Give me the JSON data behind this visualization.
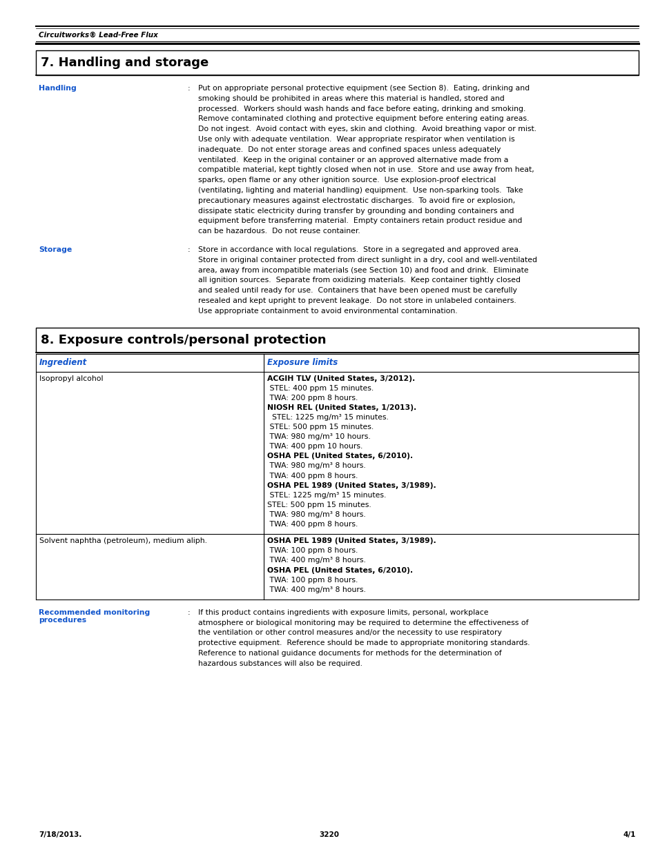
{
  "page_width": 9.54,
  "page_height": 12.35,
  "background_color": "#ffffff",
  "header_text": "Circuitworks® Lead-Free Flux",
  "footer_left": "7/18/2013.",
  "footer_center": "3220",
  "footer_right": "4/1",
  "section7_title": "7. Handling and storage",
  "section8_title": "8. Exposure controls/personal protection",
  "blue_color": "#1155CC",
  "label_handling": "Handling",
  "label_storage": "Storage",
  "label_rec_monitoring": "Recommended monitoring\nprocedures",
  "handling_text": "Put on appropriate personal protective equipment (see Section 8).  Eating, drinking and\nsmoking should be prohibited in areas where this material is handled, stored and\nprocessed.  Workers should wash hands and face before eating, drinking and smoking.\nRemove contaminated clothing and protective equipment before entering eating areas.\nDo not ingest.  Avoid contact with eyes, skin and clothing.  Avoid breathing vapor or mist.\nUse only with adequate ventilation.  Wear appropriate respirator when ventilation is\ninadequate.  Do not enter storage areas and confined spaces unless adequately\nventilated.  Keep in the original container or an approved alternative made from a\ncompatible material, kept tightly closed when not in use.  Store and use away from heat,\nsparks, open flame or any other ignition source.  Use explosion-proof electrical\n(ventilating, lighting and material handling) equipment.  Use non-sparking tools.  Take\nprecautionary measures against electrostatic discharges.  To avoid fire or explosion,\ndissipate static electricity during transfer by grounding and bonding containers and\nequipment before transferring material.  Empty containers retain product residue and\ncan be hazardous.  Do not reuse container.",
  "storage_text": "Store in accordance with local regulations.  Store in a segregated and approved area.\nStore in original container protected from direct sunlight in a dry, cool and well-ventilated\narea, away from incompatible materials (see Section 10) and food and drink.  Eliminate\nall ignition sources.  Separate from oxidizing materials.  Keep container tightly closed\nand sealed until ready for use.  Containers that have been opened must be carefully\nresealed and kept upright to prevent leakage.  Do not store in unlabeled containers.\nUse appropriate containment to avoid environmental contamination.",
  "table_header_ingredient": "Ingredient",
  "table_header_exposure": "Exposure limits",
  "ingredient1": "Isopropyl alcohol",
  "ingredient1_exposure": [
    {
      "bold": true,
      "text": "ACGIH TLV (United States, 3/2012)."
    },
    {
      "bold": false,
      "text": " STEL: 400 ppm 15 minutes."
    },
    {
      "bold": false,
      "text": " TWA: 200 ppm 8 hours."
    },
    {
      "bold": true,
      "text": "NIOSH REL (United States, 1/2013)."
    },
    {
      "bold": false,
      "text": "  STEL: 1225 mg/m³ 15 minutes."
    },
    {
      "bold": false,
      "text": " STEL: 500 ppm 15 minutes."
    },
    {
      "bold": false,
      "text": " TWA: 980 mg/m³ 10 hours."
    },
    {
      "bold": false,
      "text": " TWA: 400 ppm 10 hours."
    },
    {
      "bold": true,
      "text": "OSHA PEL (United States, 6/2010)."
    },
    {
      "bold": false,
      "text": " TWA: 980 mg/m³ 8 hours."
    },
    {
      "bold": false,
      "text": " TWA: 400 ppm 8 hours."
    },
    {
      "bold": true,
      "text": "OSHA PEL 1989 (United States, 3/1989)."
    },
    {
      "bold": false,
      "text": " STEL: 1225 mg/m³ 15 minutes."
    },
    {
      "bold": false,
      "text": "STEL: 500 ppm 15 minutes."
    },
    {
      "bold": false,
      "text": " TWA: 980 mg/m³ 8 hours."
    },
    {
      "bold": false,
      "text": " TWA: 400 ppm 8 hours."
    }
  ],
  "ingredient2": "Solvent naphtha (petroleum), medium aliph.",
  "ingredient2_exposure": [
    {
      "bold": true,
      "text": "OSHA PEL 1989 (United States, 3/1989)."
    },
    {
      "bold": false,
      "text": " TWA: 100 ppm 8 hours."
    },
    {
      "bold": false,
      "text": " TWA: 400 mg/m³ 8 hours."
    },
    {
      "bold": true,
      "text": "OSHA PEL (United States, 6/2010)."
    },
    {
      "bold": false,
      "text": " TWA: 100 ppm 8 hours."
    },
    {
      "bold": false,
      "text": " TWA: 400 mg/m³ 8 hours."
    }
  ],
  "rec_monitoring_text": "If this product contains ingredients with exposure limits, personal, workplace\natmosphere or biological monitoring may be required to determine the effectiveness of\nthe ventilation or other control measures and/or the necessity to use respiratory\nprotective equipment.  Reference should be made to appropriate monitoring standards.\nReference to national guidance documents for methods for the determination of\nhazardous substances will also be required."
}
